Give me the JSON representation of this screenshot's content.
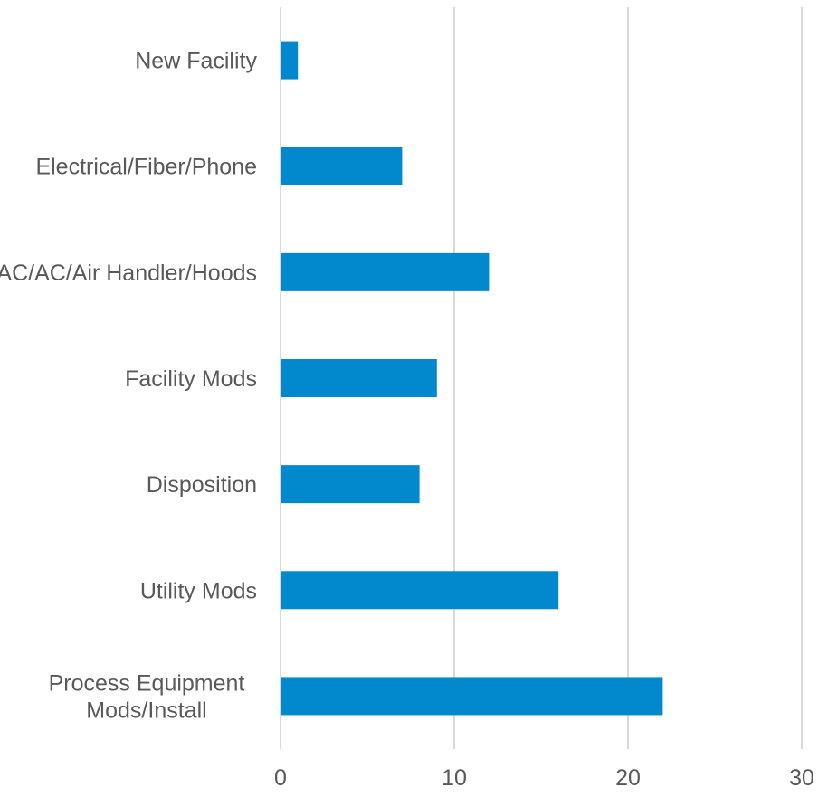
{
  "chart_data": {
    "type": "bar",
    "orientation": "horizontal",
    "title": "",
    "xlabel": "",
    "ylabel": "",
    "categories": [
      "New Facility",
      "Electrical/Fiber/Phone",
      "HVAC/AC/Air Handler/Hoods",
      "Facility Mods",
      "Disposition",
      "Utility Mods",
      "Process Equipment Mods/Install"
    ],
    "category_label_lines": [
      [
        "New Facility"
      ],
      [
        "Electrical/Fiber/Phone"
      ],
      [
        "HVAC/AC/Air Handler/Hoods"
      ],
      [
        "Facility Mods"
      ],
      [
        "Disposition"
      ],
      [
        "Utility Mods"
      ],
      [
        "Process Equipment",
        "Mods/Install"
      ]
    ],
    "values": [
      1,
      7,
      12,
      9,
      8,
      16,
      22
    ],
    "xlim": [
      0,
      30
    ],
    "x_ticks": [
      0,
      10,
      20,
      30
    ],
    "grid": "vertical",
    "legend": "none",
    "bar_color": "#0288CC",
    "grid_color": "#D9D9D9",
    "text_color": "#595959"
  }
}
